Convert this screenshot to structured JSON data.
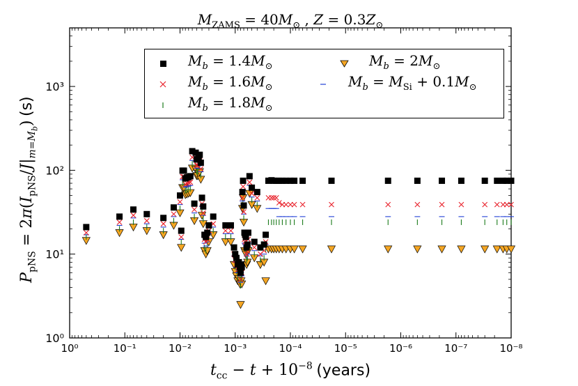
{
  "title": "M_ZAMS = 40M⊙ , Z = 0.3Z⊙",
  "xlabel": "t_cc − t + 10⁻⁸ (years)",
  "ylabel": "P_pNS = 2π(I_pNS/J|m=M_b) (s)",
  "chart_data": {
    "type": "scatter",
    "x_scale": "log-reversed",
    "y_scale": "log",
    "xlim": [
      1,
      1e-08
    ],
    "ylim": [
      1,
      5000
    ],
    "x_tick_values": [
      1,
      0.1,
      0.01,
      0.001,
      0.0001,
      1e-05,
      1e-06,
      1e-07,
      1e-08
    ],
    "x_tick_labels": [
      "10⁰",
      "10⁻¹",
      "10⁻²",
      "10⁻³",
      "10⁻⁴",
      "10⁻⁵",
      "10⁻⁶",
      "10⁻⁷",
      "10⁻⁸"
    ],
    "y_tick_values": [
      1,
      10,
      100,
      1000
    ],
    "y_tick_labels": [
      "10⁰",
      "10¹",
      "10²",
      "10³"
    ],
    "legend_position": "top-right",
    "x": [
      0.5,
      0.125,
      0.07,
      0.04,
      0.02,
      0.013,
      0.01,
      0.0095,
      0.009,
      0.0085,
      0.008,
      0.0075,
      0.007,
      0.0065,
      0.006,
      0.0055,
      0.0052,
      0.005,
      0.0048,
      0.0046,
      0.0044,
      0.0042,
      0.004,
      0.0038,
      0.0036,
      0.0034,
      0.0032,
      0.003,
      0.0025,
      0.0015,
      0.0012,
      0.00105,
      0.001,
      0.00095,
      0.0009,
      0.00086,
      0.00082,
      0.0008,
      0.00078,
      0.00076,
      0.00074,
      0.00072,
      0.0007,
      0.00068,
      0.00066,
      0.00064,
      0.00062,
      0.0006,
      0.00058,
      0.00055,
      0.0005,
      0.00045,
      0.0004,
      0.00035,
      0.0003,
      0.00028,
      0.00025,
      0.00022,
      0.0002,
      0.00018,
      0.00016,
      0.00014,
      0.00012,
      0.0001,
      8.5e-05,
      6e-05,
      1.8e-05,
      1.7e-06,
      5e-07,
      1.8e-07,
      8e-08,
      3e-08,
      1.8e-08,
      1.4e-08,
      1.2e-08,
      1e-08
    ],
    "series": [
      {
        "name": "M_b = 1.4M⊙",
        "marker": "square",
        "color": "#000000",
        "values": [
          21,
          28,
          34,
          30,
          27,
          36,
          50,
          19,
          99,
          99,
          80,
          82,
          83,
          85,
          169,
          40,
          162,
          135,
          135,
          145,
          153,
          123,
          47,
          37,
          17,
          16,
          18,
          22,
          28,
          22,
          22,
          12,
          10,
          9,
          7.5,
          8,
          7,
          6,
          7.5,
          7,
          55,
          75,
          38,
          18,
          17,
          16,
          12,
          13,
          18,
          85,
          62,
          14,
          55,
          12,
          13,
          17,
          75,
          76,
          75,
          75,
          75,
          75,
          75,
          75,
          75,
          75,
          75,
          75,
          75,
          75,
          75,
          75,
          75,
          75,
          75,
          75
        ]
      },
      {
        "name": "M_b = 1.6M⊙",
        "marker": "x",
        "color": "#e8202a",
        "values": [
          18,
          24,
          29,
          25,
          23,
          30,
          42,
          16,
          84,
          84,
          68,
          70,
          71,
          72,
          143,
          34,
          138,
          115,
          115,
          123,
          130,
          104,
          40,
          31,
          15,
          14,
          15,
          19,
          23,
          19,
          19,
          10,
          8.5,
          7.5,
          6.5,
          7,
          6,
          5,
          6.5,
          6,
          47,
          64,
          32,
          15,
          14,
          13,
          10,
          11,
          15,
          72,
          53,
          12,
          47,
          10,
          11,
          14,
          47,
          47,
          47,
          47,
          41,
          39,
          39,
          39,
          39,
          39,
          39,
          39,
          39,
          39,
          39,
          39,
          39,
          39,
          39,
          39
        ]
      },
      {
        "name": "M_b = 1.8M⊙",
        "marker": "vline",
        "color": "#1a7a1a",
        "values": [
          16,
          20,
          24,
          21,
          19,
          25,
          35,
          14,
          70,
          70,
          57,
          58,
          59,
          60,
          120,
          28,
          115,
          96,
          96,
          103,
          108,
          87,
          33,
          26,
          12,
          11,
          13,
          16,
          19,
          16,
          16,
          8.5,
          7,
          6.2,
          5.4,
          5.8,
          5,
          4.2,
          5.4,
          5,
          39,
          53,
          27,
          12,
          11.5,
          11,
          8.5,
          9,
          12,
          60,
          44,
          10,
          39,
          8.5,
          9,
          11.5,
          24,
          24,
          24,
          24,
          24,
          24,
          24,
          24,
          24,
          24,
          24,
          24,
          24,
          24,
          24,
          24,
          24,
          24,
          24,
          24
        ]
      },
      {
        "name": "M_b = 2M⊙",
        "marker": "triangle-down",
        "color": "#f5a623",
        "values": [
          14.5,
          18,
          21,
          19,
          17,
          22,
          31,
          12,
          62,
          62,
          51,
          52,
          53,
          54,
          106,
          25,
          103,
          86,
          86,
          92,
          96,
          78,
          29,
          23,
          11,
          10,
          11,
          14,
          17,
          14,
          14,
          7.5,
          6.2,
          5.5,
          4.8,
          5.1,
          4.4,
          2.5,
          4.8,
          4.4,
          35,
          47,
          24,
          11,
          10.5,
          10,
          7.5,
          8,
          11,
          53,
          39,
          9,
          35,
          7.5,
          8,
          4.8,
          11.5,
          11.5,
          11.5,
          11.5,
          11.5,
          11.5,
          11.5,
          11.5,
          11.5,
          11.5,
          11.5,
          11.5,
          11.5,
          11.5,
          11.5,
          11.5,
          11.5,
          11.5,
          11.5,
          11.5
        ]
      },
      {
        "name": "M_b = M_Si + 0.1M⊙",
        "marker": "hline",
        "color": "#1f3fd6",
        "values": [
          17,
          22,
          27,
          23,
          21,
          28,
          39,
          15,
          77,
          77,
          63,
          64,
          65,
          66,
          131,
          31,
          127,
          106,
          106,
          113,
          119,
          96,
          37,
          29,
          13.5,
          12.5,
          14,
          17.5,
          21,
          17.5,
          17.5,
          9.5,
          8,
          7,
          6,
          6.4,
          5.5,
          4.6,
          6,
          5.5,
          43,
          59,
          30,
          13.5,
          13,
          12.5,
          9.5,
          10,
          13.5,
          66,
          48,
          11,
          43,
          9.5,
          10,
          13,
          35,
          35,
          35,
          35,
          28,
          28,
          28,
          28,
          28,
          28,
          28,
          28,
          28,
          28,
          28,
          28,
          28,
          28,
          28,
          28
        ]
      }
    ]
  }
}
